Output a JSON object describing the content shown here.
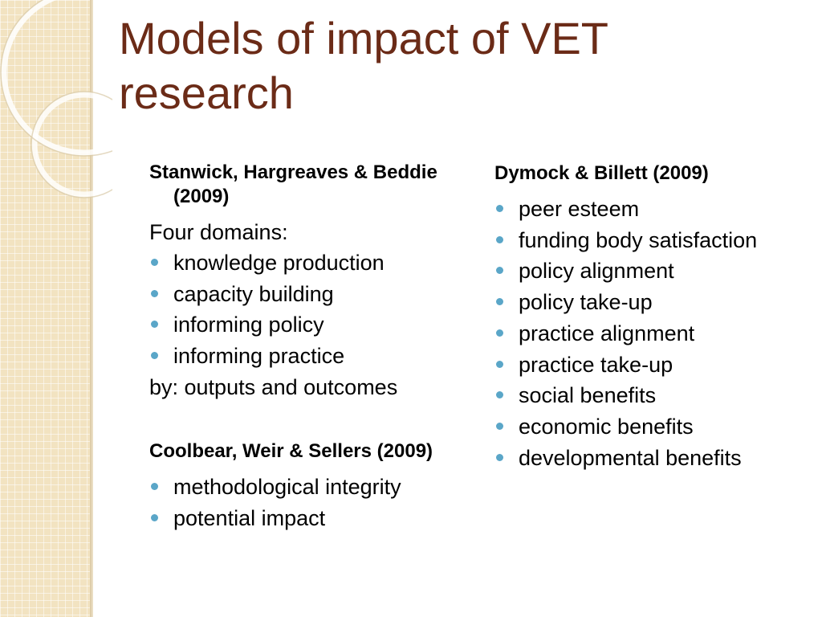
{
  "slide": {
    "title": "Models of impact of VET research",
    "accent_color": "#6b2b17",
    "bullet_color": "#5aa6c8",
    "left_column": {
      "section1": {
        "heading": "Stanwick, Hargreaves & Beddie (2009)",
        "intro": "Four domains:",
        "items": [
          "knowledge production",
          "capacity building",
          "informing policy",
          "informing practice"
        ],
        "outro": "by: outputs and outcomes"
      },
      "section2": {
        "heading": "Coolbear, Weir & Sellers (2009)",
        "items": [
          "methodological integrity",
          "potential impact"
        ]
      }
    },
    "right_column": {
      "heading": "Dymock & Billett (2009)",
      "items": [
        "peer esteem",
        "funding body satisfaction",
        "policy alignment",
        "policy take-up",
        "practice alignment",
        "practice take-up",
        "social benefits",
        "economic benefits",
        "developmental benefits"
      ]
    }
  }
}
